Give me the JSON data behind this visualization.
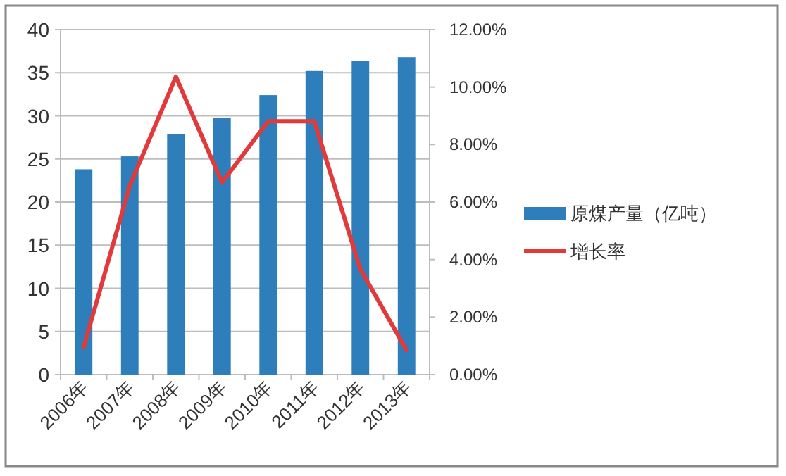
{
  "chart_data": {
    "type": "bar",
    "categories": [
      "2006年",
      "2007年",
      "2008年",
      "2009年",
      "2010年",
      "2011年",
      "2012年",
      "2013年"
    ],
    "series": [
      {
        "name": "原煤产量（亿吨）",
        "color": "#2e7ebb",
        "values": [
          23.8,
          25.3,
          27.9,
          29.8,
          32.4,
          35.2,
          36.4,
          36.8
        ]
      },
      {
        "name": "增长率",
        "type": "line",
        "axis": "y2",
        "color": "#e03a3a",
        "values": [
          0.95,
          6.57,
          10.36,
          6.68,
          8.81,
          8.81,
          3.66,
          0.85
        ]
      }
    ],
    "ylim": [
      0,
      40
    ],
    "yticks": [
      0,
      5,
      10,
      15,
      20,
      25,
      30,
      35,
      40
    ],
    "y2lim": [
      0,
      12
    ],
    "y2ticks": [
      {
        "value": 0,
        "label": "0.00%"
      },
      {
        "value": 2,
        "label": "2.00%"
      },
      {
        "value": 4,
        "label": "4.00%"
      },
      {
        "value": 6,
        "label": "6.00%"
      },
      {
        "value": 8,
        "label": "8.00%"
      },
      {
        "value": 10,
        "label": "10.00%"
      },
      {
        "value": 12,
        "label": "12.00%"
      }
    ],
    "grid": "y",
    "legend": "right",
    "marker": "none",
    "line_style": "solid"
  }
}
